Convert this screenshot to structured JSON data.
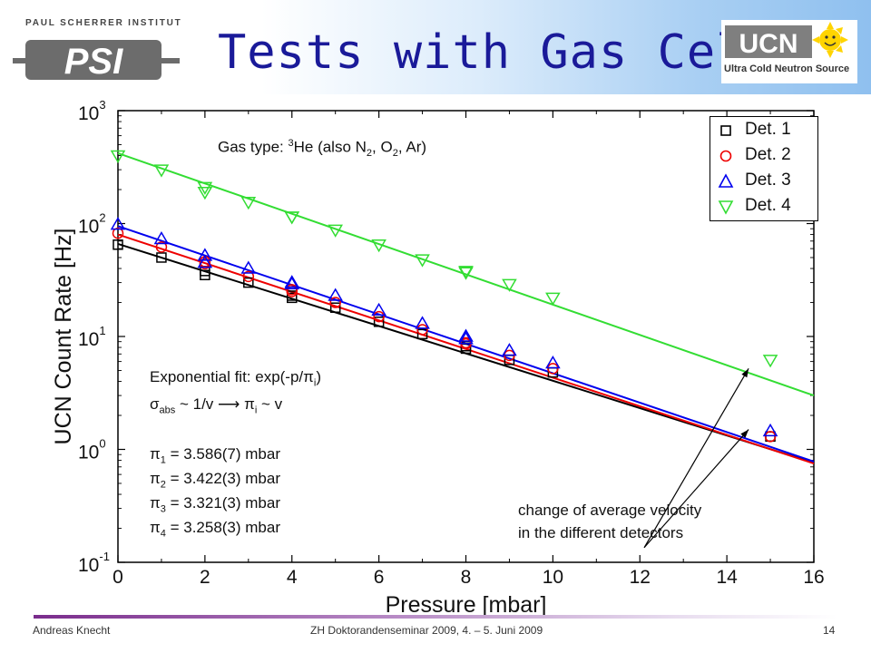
{
  "header": {
    "title": "Tests with Gas Cell",
    "psi_name": "PAUL SCHERRER INSTITUT",
    "psi_logo_text": "PSI",
    "ucn_logo_text": "UCN",
    "ucn_caption": "Ultra Cold Neutron Source"
  },
  "annotations": {
    "gas_type_prefix": "Gas type: ",
    "gas_sup": "3",
    "gas_rest1": "He (also N",
    "gas_sub1": "2",
    "gas_rest2": ", O",
    "gas_sub2": "2",
    "gas_rest3": ", Ar)",
    "fit_prefix": "Exponential fit: exp(-p/π",
    "fit_sub": "i",
    "fit_suffix": ")",
    "sigma_prefix": "σ",
    "sigma_sub": "abs",
    "sigma_mid": " ~ 1/v ⟶ π",
    "sigma_sub2": "i",
    "sigma_suffix": " ~ v",
    "pi_values": [
      {
        "sub": "1",
        "text": " = 3.586(7) mbar"
      },
      {
        "sub": "2",
        "text": " = 3.422(3) mbar"
      },
      {
        "sub": "3",
        "text": " = 3.321(3) mbar"
      },
      {
        "sub": "4",
        "text": " = 3.258(3) mbar"
      }
    ],
    "velocity_line1": "change of average velocity",
    "velocity_line2": "in the different detectors"
  },
  "footer": {
    "author": "Andreas Knecht",
    "event": "ZH Doktorandenseminar 2009, 4. – 5. Juni 2009",
    "page": "14"
  },
  "chart_data": {
    "type": "scatter",
    "xlabel": "Pressure [mbar]",
    "ylabel": "UCN Count Rate [Hz]",
    "xlim": [
      0,
      16
    ],
    "ylim": [
      0.1,
      1000
    ],
    "yscale": "log",
    "xticks": [
      0,
      2,
      4,
      6,
      8,
      10,
      12,
      14,
      16
    ],
    "yticks": [
      {
        "value": 0.1,
        "base": "10",
        "exp": "-1"
      },
      {
        "value": 1,
        "base": "10",
        "exp": "0"
      },
      {
        "value": 10,
        "base": "10",
        "exp": "1"
      },
      {
        "value": 100,
        "base": "10",
        "exp": "2"
      },
      {
        "value": 1000,
        "base": "10",
        "exp": "3"
      }
    ],
    "grid": false,
    "legend_position": "top-right",
    "series": [
      {
        "name": "Det. 1",
        "color": "#000000",
        "marker": "square",
        "x": [
          0,
          1,
          2,
          2,
          3,
          4,
          4,
          5,
          6,
          7,
          8,
          8,
          9,
          10,
          15
        ],
        "y": [
          65,
          50,
          35,
          38,
          30,
          23,
          22,
          18,
          13.5,
          10.5,
          8.2,
          7.8,
          6.2,
          4.8,
          1.3
        ],
        "fit": [
          0,
          66,
          16,
          0.76
        ]
      },
      {
        "name": "Det. 2",
        "color": "#ee0000",
        "marker": "circle",
        "x": [
          0,
          1,
          2,
          2,
          3,
          4,
          4,
          5,
          6,
          7,
          8,
          8,
          9,
          10,
          15
        ],
        "y": [
          82,
          62,
          44,
          46,
          34,
          26,
          25,
          20,
          15,
          11.5,
          8.8,
          8.6,
          6.8,
          5.2,
          1.3
        ],
        "fit": [
          0,
          80,
          16,
          0.75
        ]
      },
      {
        "name": "Det. 3",
        "color": "#0000ee",
        "marker": "triangle-up",
        "x": [
          0,
          1,
          2,
          2,
          3,
          4,
          4,
          5,
          6,
          7,
          8,
          8,
          9,
          10,
          15
        ],
        "y": [
          98,
          73,
          52,
          45,
          40,
          30,
          29,
          23,
          17,
          13,
          10,
          9.5,
          7.5,
          5.8,
          1.45
        ],
        "fit": [
          0,
          95,
          16,
          0.78
        ]
      },
      {
        "name": "Det. 4",
        "color": "#33dd33",
        "marker": "triangle-down",
        "x": [
          0,
          1,
          2,
          2,
          3,
          4,
          4,
          5,
          6,
          7,
          8,
          8,
          9,
          10,
          15
        ],
        "y": [
          400,
          300,
          190,
          210,
          155,
          115,
          115,
          88,
          65,
          48,
          38,
          37,
          29,
          22,
          6.2
        ],
        "fit": [
          0,
          420,
          16,
          3.0
        ]
      }
    ]
  }
}
